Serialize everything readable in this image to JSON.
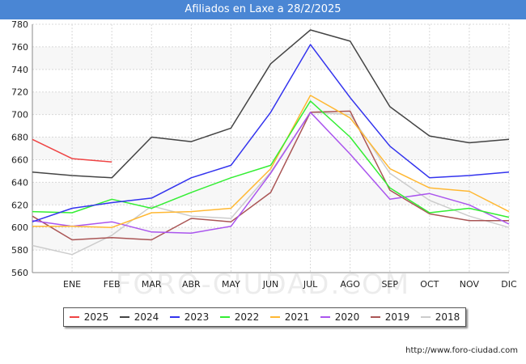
{
  "header": {
    "title": "Afiliados en Laxe a 28/2/2025"
  },
  "watermark": "FORO-CIUDAD.COM",
  "source": "http://www.foro-ciudad.com",
  "chart_data": {
    "type": "line",
    "title": "Afiliados en Laxe a 28/2/2025",
    "categories": [
      "",
      "ENE",
      "FEB",
      "MAR",
      "ABR",
      "MAY",
      "JUN",
      "JUL",
      "AGO",
      "SEP",
      "OCT",
      "NOV",
      "DIC"
    ],
    "ylim": [
      560,
      780
    ],
    "yticks": [
      560,
      580,
      600,
      620,
      640,
      660,
      680,
      700,
      720,
      740,
      760,
      780
    ],
    "grid": true,
    "legend_position": "bottom",
    "series": [
      {
        "name": "2025",
        "color": "#ef4444",
        "values": [
          678,
          661,
          658,
          null,
          null,
          null,
          null,
          null,
          null,
          null,
          null,
          null,
          null
        ]
      },
      {
        "name": "2024",
        "color": "#444444",
        "values": [
          649,
          646,
          644,
          680,
          676,
          688,
          745,
          775,
          765,
          707,
          681,
          675,
          678
        ]
      },
      {
        "name": "2023",
        "color": "#3333ee",
        "values": [
          605,
          617,
          622,
          626,
          644,
          655,
          702,
          762,
          715,
          672,
          644,
          646,
          649
        ]
      },
      {
        "name": "2022",
        "color": "#33ee33",
        "values": [
          614,
          613,
          625,
          617,
          631,
          644,
          655,
          712,
          680,
          635,
          613,
          617,
          609
        ]
      },
      {
        "name": "2021",
        "color": "#ffb833",
        "values": [
          601,
          601,
          600,
          613,
          614,
          617,
          652,
          717,
          697,
          652,
          635,
          632,
          614
        ]
      },
      {
        "name": "2020",
        "color": "#aa55ee",
        "values": [
          606,
          601,
          605,
          596,
          595,
          601,
          648,
          702,
          665,
          625,
          630,
          620,
          603
        ]
      },
      {
        "name": "2019",
        "color": "#aa5555",
        "values": [
          610,
          589,
          591,
          589,
          608,
          605,
          631,
          702,
          703,
          633,
          612,
          606,
          606
        ]
      },
      {
        "name": "2018",
        "color": "#cccccc",
        "values": [
          584,
          576,
          593,
          619,
          610,
          608,
          649,
          702,
          700,
          648,
          624,
          610,
          600
        ]
      }
    ]
  }
}
